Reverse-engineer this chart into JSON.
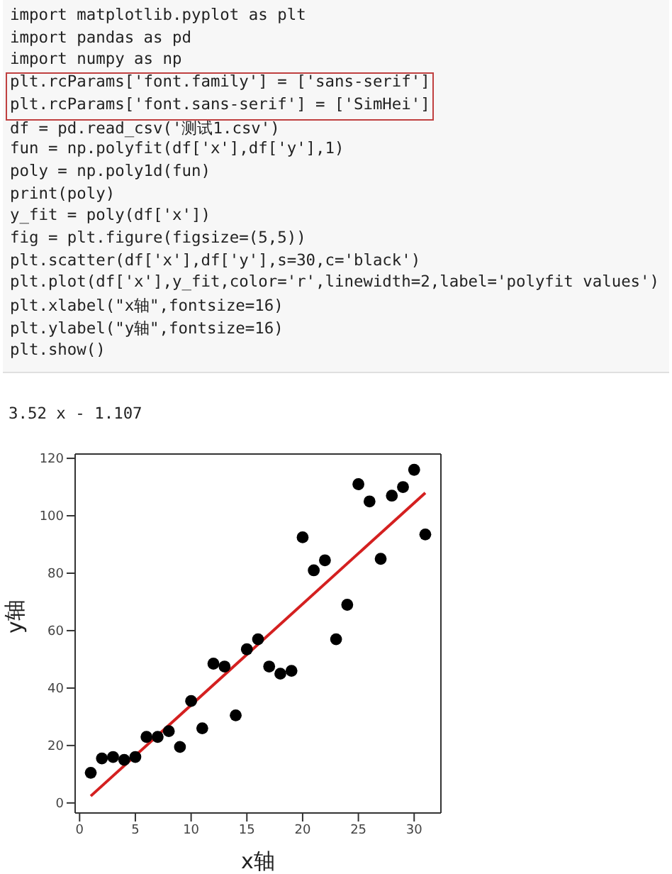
{
  "chart_data": {
    "type": "scatter",
    "xlabel": "x轴",
    "ylabel": "y轴",
    "annotations": [
      "import matplotlib.pyplot as plt",
      "import pandas as pd",
      "import numpy as np",
      "plt.rcParams['font.family'] = ['sans-serif']",
      "plt.rcParams['font.sans-serif'] = ['SimHei']",
      "df = pd.read_csv('测试1.csv')",
      "fun = np.polyfit(df['x'],df['y'],1)",
      "poly = np.poly1d(fun)",
      "print(poly)",
      "y_fit = poly(df['x'])",
      "fig = plt.figure(figsize=(5,5))",
      "plt.scatter(df['x'],df['y'],s=30,c='black')",
      "plt.plot(df['x'],y_fit,color='r',linewidth=2,label='polyfit values')",
      "plt.xlabel(\"x轴\",fontsize=16)",
      "plt.ylabel(\"y轴\",fontsize=16)",
      "plt.show()",
      "3.52 x - 1.107"
    ],
    "xlim": [
      -0.4,
      32.4
    ],
    "xticks": [
      0,
      5,
      10,
      15,
      20,
      25,
      30
    ],
    "ylim": [
      -3.5,
      121.5
    ],
    "yticks": [
      0,
      20,
      40,
      60,
      80,
      100,
      120
    ],
    "series": [
      {
        "marker": "circle",
        "color": "#000000",
        "x": [
          1,
          2,
          3,
          4,
          5,
          6,
          7,
          8,
          9,
          10,
          11,
          12,
          13,
          14,
          15,
          16,
          17,
          18,
          19,
          20,
          21,
          22,
          23,
          24,
          25,
          26,
          27,
          28,
          29,
          30,
          31
        ],
        "values": [
          10.5,
          15.5,
          16,
          15,
          16,
          23,
          23,
          25,
          19.5,
          35.5,
          26,
          48.5,
          47.5,
          30.5,
          53.5,
          57,
          47.5,
          45,
          46,
          92.5,
          81,
          84.5,
          57,
          69,
          111,
          105,
          85,
          107,
          110,
          116,
          93.5
        ]
      },
      {
        "type": "line",
        "marker": "none",
        "color": "#d42020",
        "x": [
          1,
          31
        ],
        "values": [
          2.4,
          108
        ]
      }
    ]
  }
}
